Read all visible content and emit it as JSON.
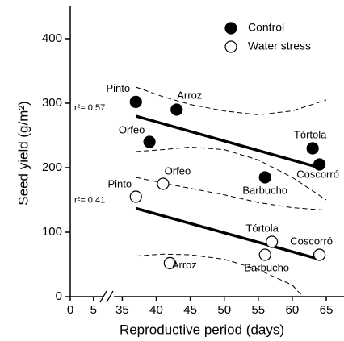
{
  "chart_data": {
    "type": "scatter",
    "x_label": "Reproductive period (days)",
    "y_label": "Seed yield (g/m²)",
    "xlim": [
      0,
      65
    ],
    "xbreak": [
      8,
      34
    ],
    "ylim": [
      0,
      450
    ],
    "xticks": [
      0,
      5,
      35,
      40,
      45,
      50,
      55,
      60,
      65
    ],
    "yticks": [
      0,
      100,
      200,
      300,
      400
    ],
    "legend": "upper right",
    "series": [
      {
        "name": "Control",
        "color": "#000000",
        "filled": true,
        "x": [
          37,
          43,
          39,
          56,
          63,
          64
        ],
        "values": [
          302,
          290,
          240,
          185,
          230,
          205
        ],
        "labels": [
          "Pinto",
          "Arroz",
          "Orfeo",
          "Barbucho",
          "Tórtola",
          "Coscorró"
        ]
      },
      {
        "name": "Water stress",
        "color": "#000000",
        "filled": false,
        "x": [
          37,
          41,
          42,
          56,
          57,
          64
        ],
        "values": [
          155,
          175,
          52,
          65,
          85,
          65
        ],
        "labels": [
          "Pinto",
          "Orfeo",
          "Arroz",
          "Barbucho",
          "Tórtola",
          "Coscorró"
        ]
      }
    ],
    "fits": [
      {
        "x": [
          37,
          64
        ],
        "values": [
          280,
          200
        ],
        "annotation": "r²= 0.57"
      },
      {
        "x": [
          37,
          64
        ],
        "values": [
          137,
          58
        ],
        "annotation": "r²= 0.41"
      }
    ],
    "bands": [
      {
        "x": [
          37,
          41,
          45,
          50,
          55,
          60,
          65
        ],
        "values": [
          325,
          310,
          298,
          288,
          282,
          288,
          305
        ]
      },
      {
        "x": [
          37,
          41,
          45,
          50,
          55,
          60,
          65
        ],
        "values": [
          225,
          228,
          232,
          228,
          212,
          185,
          150
        ]
      },
      {
        "x": [
          37,
          41,
          45,
          50,
          55,
          60,
          65
        ],
        "values": [
          185,
          176,
          168,
          158,
          146,
          138,
          134
        ]
      },
      {
        "x": [
          37,
          41,
          45,
          50,
          55,
          60,
          62
        ],
        "values": [
          63,
          66,
          65,
          58,
          42,
          18,
          -5
        ]
      }
    ]
  }
}
